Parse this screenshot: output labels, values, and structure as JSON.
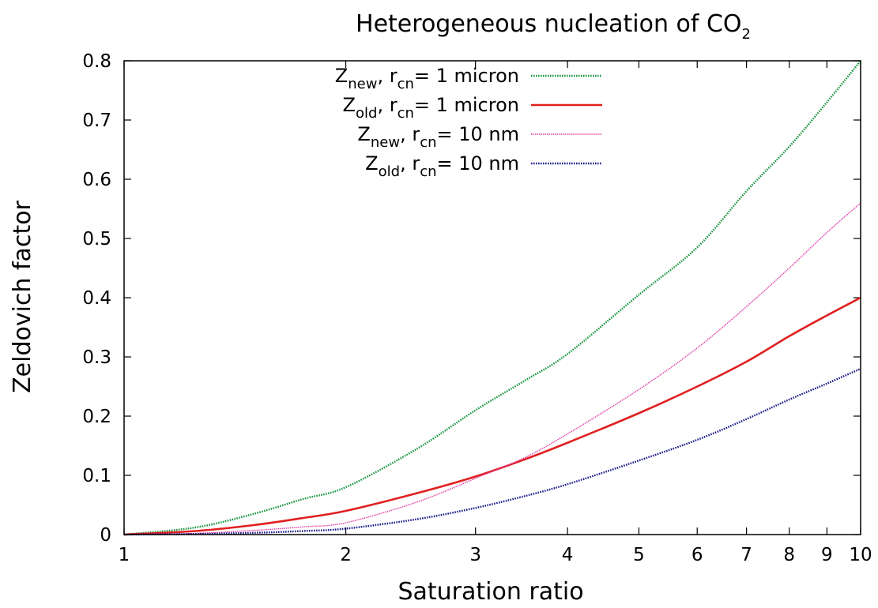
{
  "chart_data": {
    "type": "line",
    "title": {
      "text": "Heterogeneous nucleation of CO",
      "subscript": "2"
    },
    "xlabel": "Saturation ratio",
    "ylabel": "Zeldovich factor",
    "x_scale": "log",
    "xlim": [
      1,
      10
    ],
    "ylim": [
      0,
      0.8
    ],
    "x_ticks": [
      1,
      2,
      3,
      4,
      5,
      6,
      7,
      8,
      9,
      10
    ],
    "x_tick_labels": [
      "1",
      "2",
      "3",
      "4",
      "5",
      "6",
      "7",
      "8",
      "9",
      "10"
    ],
    "y_ticks": [
      0,
      0.1,
      0.2,
      0.3,
      0.4,
      0.5,
      0.6,
      0.7,
      0.8
    ],
    "y_tick_labels": [
      "0",
      "0.1",
      "0.2",
      "0.3",
      "0.4",
      "0.5",
      "0.6",
      "0.7",
      "0.8"
    ],
    "grid": false,
    "legend_position": "top",
    "x": [
      1,
      1.25,
      1.5,
      1.75,
      2,
      2.5,
      3,
      3.5,
      4,
      5,
      6,
      7,
      8,
      9,
      10
    ],
    "series": [
      {
        "name": "Z_new, r_cn= 1 micron",
        "label": {
          "z": "Z",
          "zsub": "new",
          "r": ", r",
          "rsub": "cn",
          "rest": "= 1 micron"
        },
        "color": "#1a9641",
        "style": "dotted",
        "values": [
          0,
          0.012,
          0.035,
          0.06,
          0.08,
          0.145,
          0.21,
          0.26,
          0.305,
          0.405,
          0.485,
          0.58,
          0.655,
          0.73,
          0.8
        ]
      },
      {
        "name": "Z_old, r_cn= 1 micron",
        "label": {
          "z": "Z",
          "zsub": "old",
          "r": ", r",
          "rsub": "cn",
          "rest": "= 1 micron"
        },
        "color": "#e02020",
        "style": "solid",
        "values": [
          0,
          0.006,
          0.016,
          0.028,
          0.04,
          0.07,
          0.098,
          0.127,
          0.155,
          0.205,
          0.25,
          0.292,
          0.335,
          0.37,
          0.4
        ]
      },
      {
        "name": "Z_new, r_cn= 10 nm",
        "label": {
          "z": "Z",
          "zsub": "new",
          "r": ", r",
          "rsub": "cn",
          "rest": "= 10 nm"
        },
        "color": "#e040a8",
        "style": "thin",
        "values": [
          0,
          0.002,
          0.007,
          0.013,
          0.02,
          0.055,
          0.095,
          0.13,
          0.17,
          0.245,
          0.315,
          0.385,
          0.45,
          0.51,
          0.56
        ]
      },
      {
        "name": "Z_old, r_cn= 10 nm",
        "label": {
          "z": "Z",
          "zsub": "old",
          "r": ", r",
          "rsub": "cn",
          "rest": "= 10 nm"
        },
        "color": "#1c1c8c",
        "style": "dotted",
        "values": [
          0,
          0.001,
          0.003,
          0.006,
          0.01,
          0.026,
          0.045,
          0.065,
          0.085,
          0.125,
          0.16,
          0.195,
          0.228,
          0.255,
          0.28
        ]
      }
    ]
  }
}
